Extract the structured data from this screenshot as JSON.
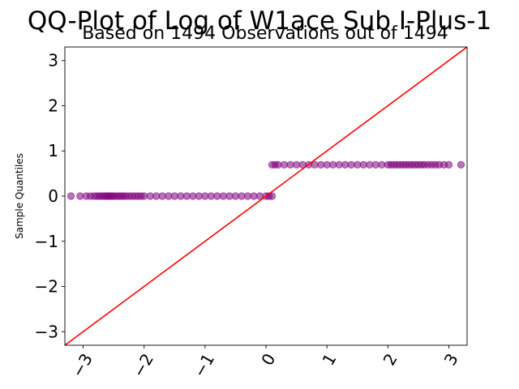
{
  "chart_data": {
    "type": "scatter",
    "title": "QQ-Plot of Log of W1ace Sub I-Plus-1",
    "subtitle": "Based on 1494 Observations out of 1494",
    "xlabel": "",
    "ylabel": "Sample Quantiles",
    "xlim": [
      -3.3,
      3.3
    ],
    "ylim": [
      -3.3,
      3.3
    ],
    "x_ticks": [
      -3,
      -2,
      -1,
      0,
      1,
      2,
      3
    ],
    "y_ticks": [
      -3,
      -2,
      -1,
      0,
      1,
      2,
      3
    ],
    "x_tick_labels": [
      "−3",
      "−2",
      "−1",
      "0",
      "1",
      "2",
      "3"
    ],
    "y_tick_labels": [
      "−3",
      "−2",
      "−1",
      "0",
      "1",
      "2",
      "3"
    ],
    "series": [
      {
        "values": {
          "lower_group": {
            "y": 0,
            "x": [
              -3.2,
              -3.05,
              -2.95,
              -2.88,
              -2.82,
              -2.77,
              -2.73,
              -2.69,
              -2.65,
              -2.62,
              -2.59,
              -2.56,
              -2.53,
              -2.5,
              -2.46,
              -2.42,
              -2.38,
              -2.34,
              -2.3,
              -2.25,
              -2.2,
              -2.15,
              -2.1,
              -2.05,
              -2.0,
              -1.9,
              -1.8,
              -1.7,
              -1.6,
              -1.5,
              -1.4,
              -1.3,
              -1.2,
              -1.1,
              -1.0,
              -0.9,
              -0.8,
              -0.7,
              -0.6,
              -0.5,
              -0.4,
              -0.3,
              -0.2,
              -0.1,
              0.0,
              0.05,
              0.1
            ]
          },
          "upper_group": {
            "y": 0.693,
            "x": [
              0.1,
              0.15,
              0.2,
              0.3,
              0.4,
              0.5,
              0.6,
              0.7,
              0.8,
              0.9,
              1.0,
              1.1,
              1.2,
              1.3,
              1.4,
              1.5,
              1.6,
              1.7,
              1.8,
              1.9,
              2.0,
              2.05,
              2.1,
              2.15,
              2.2,
              2.25,
              2.3,
              2.35,
              2.4,
              2.45,
              2.5,
              2.55,
              2.6,
              2.66,
              2.72,
              2.78,
              2.84,
              2.92,
              3.0,
              3.2
            ]
          }
        },
        "color": "#800080"
      }
    ],
    "reference_line": {
      "slope": 1,
      "intercept": 0,
      "color": "#ff0000"
    },
    "grid": false
  }
}
